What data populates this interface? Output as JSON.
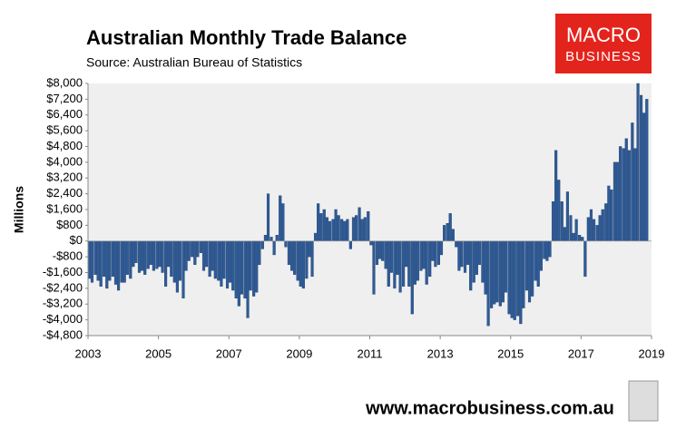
{
  "chart_data": {
    "type": "bar",
    "title": "Australian Monthly Trade Balance",
    "subtitle": "Source: Australian Bureau of Statistics",
    "y_label": "Millions",
    "logo": [
      "MACRO",
      "BUSINESS"
    ],
    "footer": "www.macrobusiness.com.au",
    "color": "#2f5b97",
    "grid": false,
    "xlim": [
      2003,
      2019
    ],
    "xticks": [
      2003,
      2005,
      2007,
      2009,
      2011,
      2013,
      2015,
      2017,
      2019
    ],
    "ylim": [
      -4800,
      8000
    ],
    "yticks": [
      {
        "value": -4800,
        "label": "-$4,800"
      },
      {
        "value": -4000,
        "label": "-$4,000"
      },
      {
        "value": -3200,
        "label": "-$3,200"
      },
      {
        "value": -2400,
        "label": "-$2,400"
      },
      {
        "value": -1600,
        "label": "-$1,600"
      },
      {
        "value": -800,
        "label": "-$800"
      },
      {
        "value": 0,
        "label": "$0"
      },
      {
        "value": 800,
        "label": "$800"
      },
      {
        "value": 1600,
        "label": "$1,600"
      },
      {
        "value": 2400,
        "label": "$2,400"
      },
      {
        "value": 3200,
        "label": "$3,200"
      },
      {
        "value": 4000,
        "label": "$4,000"
      },
      {
        "value": 4800,
        "label": "$4,800"
      },
      {
        "value": 5600,
        "label": "$5,600"
      },
      {
        "value": 6400,
        "label": "$6,400"
      },
      {
        "value": 7200,
        "label": "$7,200"
      },
      {
        "value": 8000,
        "label": "$8,000"
      }
    ],
    "x": [
      2003,
      2003.08,
      2003.17,
      2003.25,
      2003.33,
      2003.42,
      2003.5,
      2003.58,
      2003.67,
      2003.75,
      2003.83,
      2003.92,
      2004,
      2004.08,
      2004.17,
      2004.25,
      2004.33,
      2004.42,
      2004.5,
      2004.58,
      2004.67,
      2004.75,
      2004.83,
      2004.92,
      2005,
      2005.08,
      2005.17,
      2005.25,
      2005.33,
      2005.42,
      2005.5,
      2005.58,
      2005.67,
      2005.75,
      2005.83,
      2005.92,
      2006,
      2006.08,
      2006.17,
      2006.25,
      2006.33,
      2006.42,
      2006.5,
      2006.58,
      2006.67,
      2006.75,
      2006.83,
      2006.92,
      2007,
      2007.08,
      2007.17,
      2007.25,
      2007.33,
      2007.42,
      2007.5,
      2007.58,
      2007.67,
      2007.75,
      2007.83,
      2007.92,
      2008,
      2008.08,
      2008.17,
      2008.25,
      2008.33,
      2008.42,
      2008.5,
      2008.58,
      2008.67,
      2008.75,
      2008.83,
      2008.92,
      2009,
      2009.08,
      2009.17,
      2009.25,
      2009.33,
      2009.42,
      2009.5,
      2009.58,
      2009.67,
      2009.75,
      2009.83,
      2009.92,
      2010,
      2010.08,
      2010.17,
      2010.25,
      2010.33,
      2010.42,
      2010.5,
      2010.58,
      2010.67,
      2010.75,
      2010.83,
      2010.92,
      2011,
      2011.08,
      2011.17,
      2011.25,
      2011.33,
      2011.42,
      2011.5,
      2011.58,
      2011.67,
      2011.75,
      2011.83,
      2011.92,
      2012,
      2012.08,
      2012.17,
      2012.25,
      2012.33,
      2012.42,
      2012.5,
      2012.58,
      2012.67,
      2012.75,
      2012.83,
      2012.92,
      2013,
      2013.08,
      2013.17,
      2013.25,
      2013.33,
      2013.42,
      2013.5,
      2013.58,
      2013.67,
      2013.75,
      2013.83,
      2013.92,
      2014,
      2014.08,
      2014.17,
      2014.25,
      2014.33,
      2014.42,
      2014.5,
      2014.58,
      2014.67,
      2014.75,
      2014.83,
      2014.92,
      2015,
      2015.08,
      2015.17,
      2015.25,
      2015.33,
      2015.42,
      2015.5,
      2015.58,
      2015.67,
      2015.75,
      2015.83,
      2015.92,
      2016,
      2016.08,
      2016.17,
      2016.25,
      2016.33,
      2016.42,
      2016.5,
      2016.58,
      2016.67,
      2016.75,
      2016.83,
      2016.92,
      2017,
      2017.08,
      2017.17,
      2017.25,
      2017.33,
      2017.42,
      2017.5,
      2017.58,
      2017.67,
      2017.75,
      2017.83,
      2017.92,
      2018,
      2018.08,
      2018.17,
      2018.25,
      2018.33,
      2018.42,
      2018.5,
      2018.58,
      2018.67,
      2018.75,
      2018.83
    ],
    "values": [
      -1900,
      -2100,
      -1700,
      -2000,
      -2300,
      -1800,
      -2400,
      -2000,
      -1800,
      -2200,
      -2500,
      -2100,
      -2100,
      -1700,
      -1900,
      -1300,
      -1100,
      -1600,
      -1500,
      -1700,
      -1400,
      -1200,
      -1500,
      -1400,
      -1300,
      -1600,
      -2300,
      -1300,
      -1800,
      -2100,
      -2600,
      -2000,
      -2900,
      -1500,
      -1000,
      -800,
      -1200,
      -800,
      -600,
      -1500,
      -1300,
      -1800,
      -1500,
      -1900,
      -2000,
      -2300,
      -1900,
      -2400,
      -2100,
      -2500,
      -2900,
      -3300,
      -2700,
      -2900,
      -3900,
      -2500,
      -2800,
      -2600,
      -1200,
      -400,
      300,
      2400,
      200,
      -700,
      300,
      2300,
      1900,
      -300,
      -1200,
      -1500,
      -1700,
      -2000,
      -2300,
      -2400,
      -1900,
      -800,
      -1800,
      400,
      1900,
      1400,
      1600,
      1200,
      1000,
      1100,
      1600,
      1300,
      1100,
      1000,
      1100,
      -400,
      1200,
      1300,
      1700,
      1100,
      1200,
      1500,
      -200,
      -2700,
      -1200,
      -900,
      -1000,
      -1400,
      -2300,
      -1600,
      -2400,
      -1700,
      -2600,
      -2300,
      -1300,
      -2300,
      -3700,
      -2200,
      -2000,
      -1500,
      -1400,
      -2200,
      -1800,
      -1000,
      -1300,
      -1200,
      -700,
      800,
      900,
      1400,
      600,
      -300,
      -1500,
      -1300,
      -1600,
      -1200,
      -2500,
      -2100,
      -1700,
      -1200,
      -2100,
      -2700,
      -4300,
      -3400,
      -3200,
      -3100,
      -3300,
      -3100,
      -2600,
      -3700,
      -3900,
      -4000,
      -3800,
      -4200,
      -3400,
      -2500,
      -3100,
      -2800,
      -2000,
      -2300,
      -1500,
      -900,
      -1000,
      -800,
      2000,
      4600,
      3100,
      2000,
      700,
      2500,
      1300,
      400,
      1100,
      300,
      200,
      -1800,
      1200,
      1600,
      1100,
      800,
      1300,
      1600,
      1900,
      2800,
      2600,
      4000,
      4000,
      4800,
      4700,
      5200,
      4600,
      6000,
      4700,
      8000,
      7400,
      6500,
      7200
    ]
  }
}
